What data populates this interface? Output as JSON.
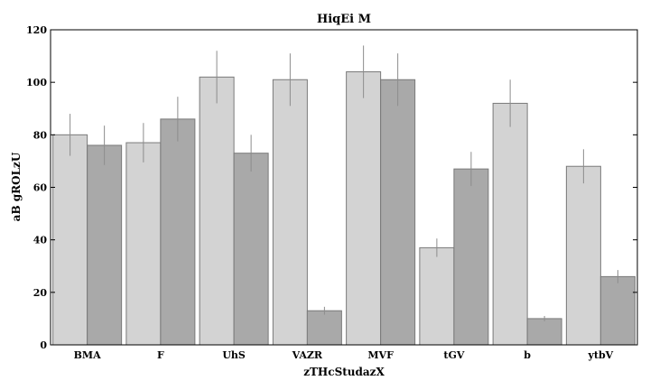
{
  "chart_data": {
    "type": "bar",
    "title": "HiqEi M",
    "xlabel": "zTHcStudazX",
    "ylabel": "aB gROLzU",
    "categories": [
      "BMA",
      "F",
      "UhS",
      "VAZR",
      "MVF",
      "tGV",
      "b",
      "ytbV"
    ],
    "ylim": [
      0,
      120
    ],
    "yticks": [
      0,
      20,
      40,
      60,
      80,
      100,
      120
    ],
    "grid": false,
    "series": [
      {
        "values": [
          80,
          77,
          102,
          101,
          104,
          37,
          92,
          68
        ],
        "errors": [
          8,
          7.5,
          10,
          10,
          10,
          3.5,
          9,
          6.5
        ],
        "color": "#d3d3d3"
      },
      {
        "values": [
          76,
          86,
          73,
          13,
          101,
          67,
          10,
          26
        ],
        "errors": [
          7.5,
          8.5,
          7,
          1.5,
          10,
          6.5,
          1,
          2.5
        ],
        "color": "#a9a9a9"
      }
    ]
  }
}
